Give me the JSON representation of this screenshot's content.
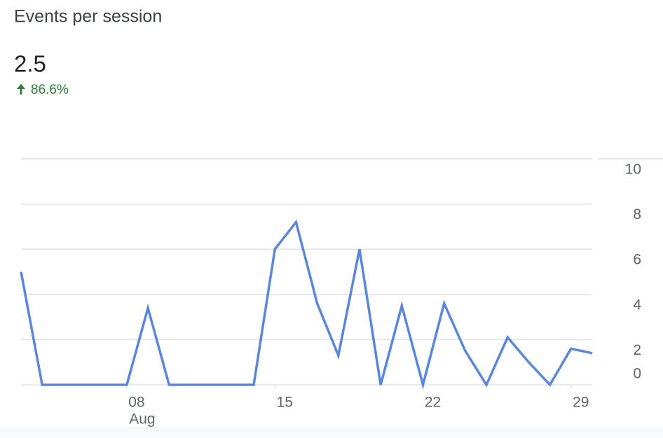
{
  "chart_data": {
    "type": "line",
    "title": "Events per session",
    "metric_value": 2.5,
    "change": {
      "value": 86.6,
      "label": "86.6%"
    },
    "change_color": "#2e7d32",
    "categories": [
      null,
      null,
      null,
      null,
      null,
      "08",
      null,
      null,
      null,
      null,
      null,
      null,
      "15",
      null,
      null,
      null,
      null,
      null,
      null,
      "22",
      null,
      null,
      null,
      null,
      null,
      null,
      "29",
      null
    ],
    "month_label": {
      "index": 5,
      "label": "Aug"
    },
    "series": [
      {
        "color": "#5a86e0",
        "values": [
          5.0,
          0,
          0,
          0,
          0,
          0,
          3.4,
          0,
          0,
          0,
          0,
          0,
          6.0,
          7.2,
          3.6,
          1.3,
          6.0,
          0,
          3.5,
          0,
          3.6,
          1.5,
          0,
          2.1,
          1.0,
          0,
          1.6,
          1.4
        ]
      }
    ],
    "ylim": [
      0,
      10
    ],
    "yticks": [
      0,
      2,
      4,
      6,
      8,
      10
    ],
    "grid": true,
    "y_axis_side": "right"
  }
}
